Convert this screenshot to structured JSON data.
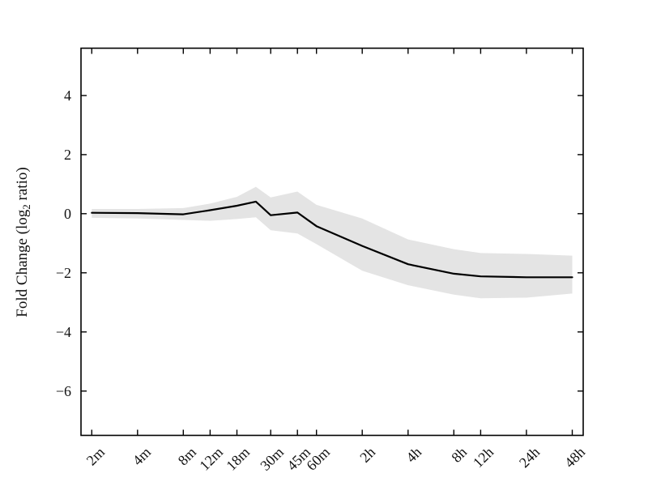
{
  "figure": {
    "background": "#ffffff",
    "frame_color": "#000000"
  },
  "chart_data": {
    "type": "line",
    "title": "",
    "xlabel": "",
    "ylabel": "Fold Change (log2 ratio)",
    "ylabel_parts": {
      "pre": "Fold Change (log",
      "sub": "2",
      "post": " ratio)"
    },
    "grid": false,
    "legend": null,
    "x_axis": {
      "scale": "log2-time",
      "tick_labels": [
        "2m",
        "4m",
        "8m",
        "12m",
        "18m",
        "30m",
        "45m",
        "60m",
        "2h",
        "4h",
        "8h",
        "12h",
        "24h",
        "48h"
      ],
      "tick_minutes": [
        2,
        4,
        8,
        12,
        18,
        30,
        45,
        60,
        120,
        240,
        480,
        720,
        1440,
        2880
      ],
      "xlim_minutes": [
        1.7,
        3400
      ]
    },
    "y_axis": {
      "tick_values": [
        4,
        2,
        0,
        -2,
        -4,
        -6
      ],
      "tick_labels": [
        "4",
        "2",
        "0",
        "−2",
        "−4",
        "−6"
      ],
      "ylim": [
        -7.5,
        5.6
      ]
    },
    "series": [
      {
        "name": "fold-change",
        "line_color": "#000000",
        "band_color": "#e4e4e4",
        "x_minutes": [
          2,
          4,
          8,
          12,
          18,
          24,
          30,
          45,
          60,
          120,
          240,
          480,
          720,
          1440,
          2880
        ],
        "values": [
          0.03,
          0.02,
          -0.02,
          0.12,
          0.27,
          0.41,
          -0.05,
          0.04,
          -0.42,
          -1.09,
          -1.71,
          -2.03,
          -2.12,
          -2.15,
          -2.15
        ],
        "band_upper": [
          0.16,
          0.16,
          0.19,
          0.34,
          0.57,
          0.91,
          0.55,
          0.75,
          0.3,
          -0.16,
          -0.87,
          -1.2,
          -1.33,
          -1.36,
          -1.42
        ],
        "band_lower": [
          -0.14,
          -0.16,
          -0.21,
          -0.24,
          -0.18,
          -0.12,
          -0.56,
          -0.67,
          -1.03,
          -1.93,
          -2.42,
          -2.74,
          -2.86,
          -2.84,
          -2.7
        ]
      }
    ]
  }
}
